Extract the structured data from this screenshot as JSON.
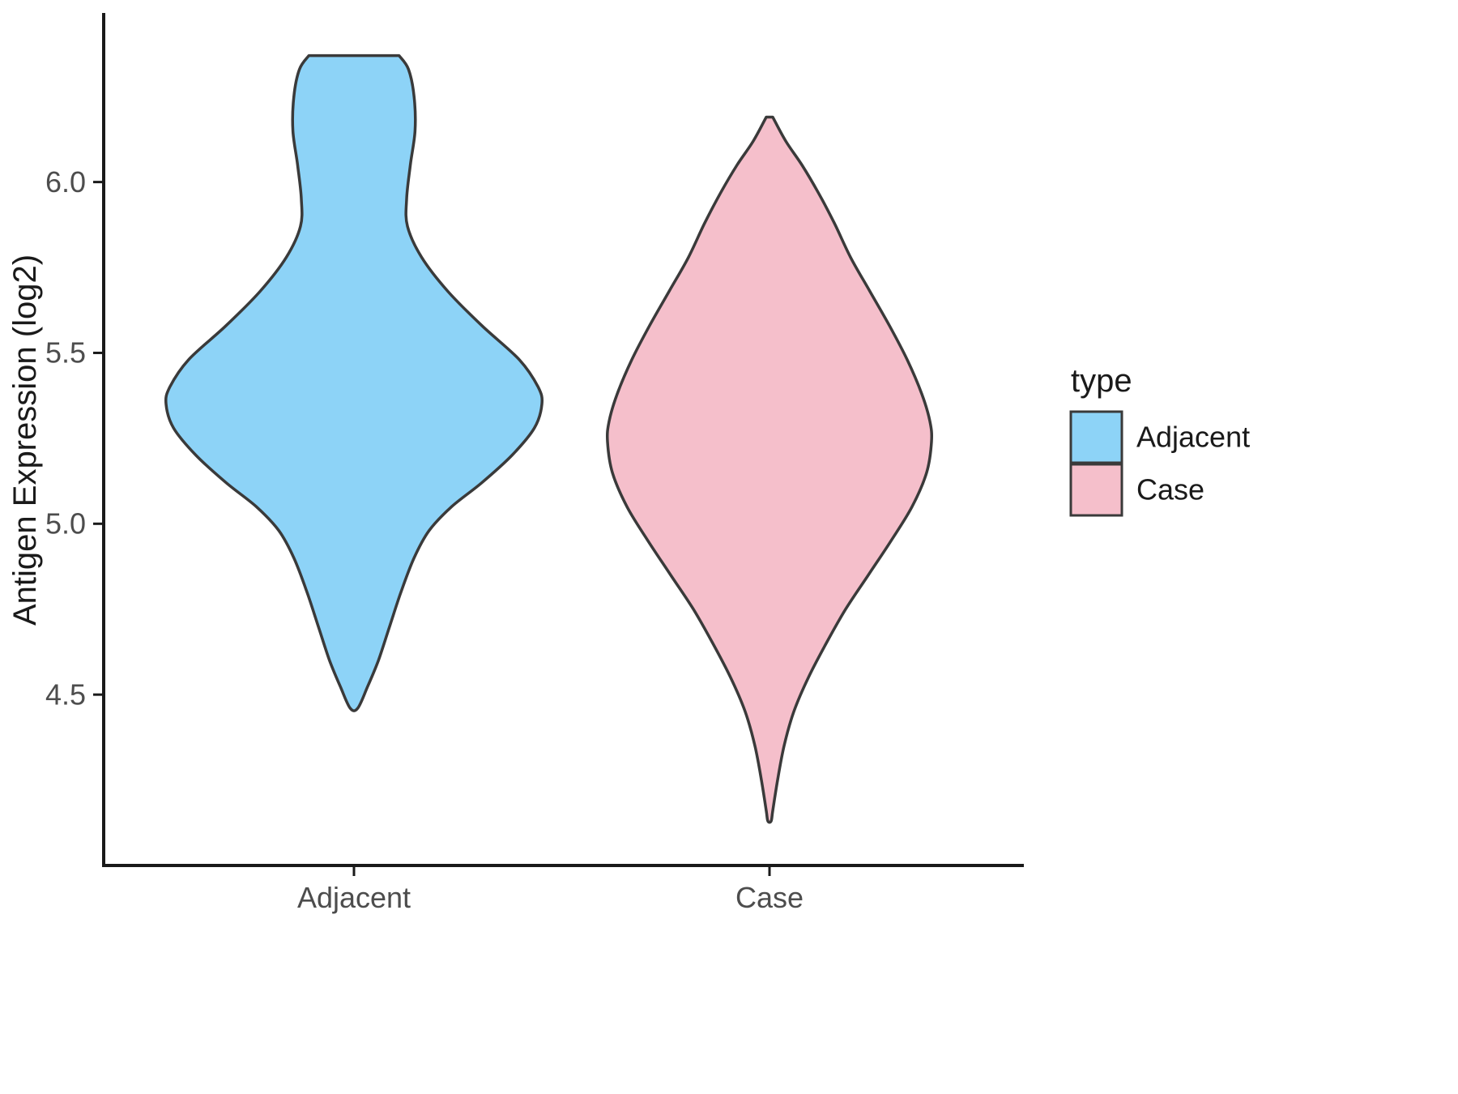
{
  "chart_data": {
    "type": "violin",
    "title": "",
    "xlabel": "",
    "ylabel": "Antigen Expression (log2)",
    "categories": [
      "Adjacent",
      "Case"
    ],
    "yticks": [
      4.5,
      5.0,
      5.5,
      6.0
    ],
    "ylim": [
      4.0,
      6.49
    ],
    "grid": false,
    "legend": {
      "title": "type",
      "position": "right",
      "entries": [
        {
          "label": "Adjacent",
          "color": "#8DD3F7"
        },
        {
          "label": "Case",
          "color": "#F5BFCB"
        }
      ]
    },
    "series": [
      {
        "name": "Adjacent",
        "fill": "#8DD3F7",
        "outline": "#3a3a3a",
        "y_min": 4.46,
        "y_max": 6.37,
        "mode": 5.35,
        "profile": [
          [
            6.37,
            0.24
          ],
          [
            6.33,
            0.29
          ],
          [
            6.25,
            0.32
          ],
          [
            6.15,
            0.325
          ],
          [
            6.05,
            0.3
          ],
          [
            5.95,
            0.28
          ],
          [
            5.87,
            0.285
          ],
          [
            5.78,
            0.36
          ],
          [
            5.68,
            0.5
          ],
          [
            5.58,
            0.68
          ],
          [
            5.48,
            0.88
          ],
          [
            5.4,
            0.98
          ],
          [
            5.35,
            1.0
          ],
          [
            5.28,
            0.96
          ],
          [
            5.2,
            0.84
          ],
          [
            5.12,
            0.68
          ],
          [
            5.05,
            0.52
          ],
          [
            4.98,
            0.4
          ],
          [
            4.9,
            0.32
          ],
          [
            4.8,
            0.25
          ],
          [
            4.7,
            0.19
          ],
          [
            4.6,
            0.13
          ],
          [
            4.52,
            0.07
          ],
          [
            4.46,
            0.02
          ]
        ]
      },
      {
        "name": "Case",
        "fill": "#F5BFCB",
        "outline": "#3a3a3a",
        "y_min": 4.13,
        "y_max": 6.19,
        "mode": 5.24,
        "profile": [
          [
            6.19,
            0.02
          ],
          [
            6.12,
            0.1
          ],
          [
            6.05,
            0.2
          ],
          [
            5.97,
            0.3
          ],
          [
            5.88,
            0.4
          ],
          [
            5.78,
            0.5
          ],
          [
            5.68,
            0.62
          ],
          [
            5.58,
            0.74
          ],
          [
            5.48,
            0.85
          ],
          [
            5.38,
            0.94
          ],
          [
            5.3,
            0.99
          ],
          [
            5.24,
            1.0
          ],
          [
            5.15,
            0.97
          ],
          [
            5.05,
            0.88
          ],
          [
            4.95,
            0.75
          ],
          [
            4.85,
            0.61
          ],
          [
            4.75,
            0.47
          ],
          [
            4.65,
            0.35
          ],
          [
            4.55,
            0.24
          ],
          [
            4.45,
            0.15
          ],
          [
            4.35,
            0.09
          ],
          [
            4.25,
            0.05
          ],
          [
            4.16,
            0.02
          ],
          [
            4.13,
            0.01
          ]
        ]
      }
    ]
  }
}
